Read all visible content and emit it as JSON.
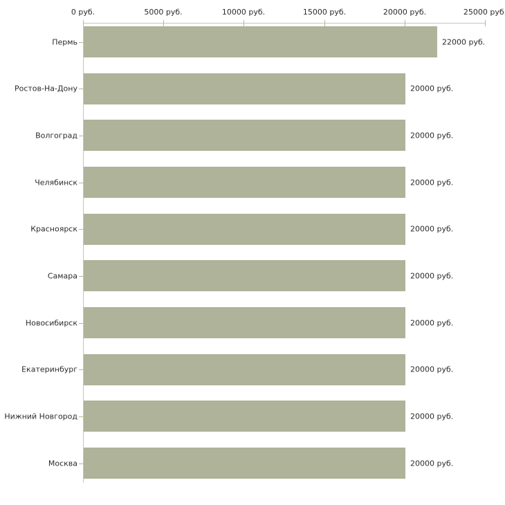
{
  "chart_data": {
    "type": "bar",
    "orientation": "horizontal",
    "title": "",
    "xlabel": "",
    "ylabel": "",
    "unit": "руб.",
    "xlim": [
      0,
      25000
    ],
    "grid": false,
    "legend": "none",
    "categories": [
      "Пермь",
      "Ростов-На-Дону",
      "Волгоград",
      "Челябинск",
      "Красноярск",
      "Самара",
      "Новосибирск",
      "Екатеринбург",
      "Нижний Новгород",
      "Москва"
    ],
    "values": [
      22000,
      20000,
      20000,
      20000,
      20000,
      20000,
      20000,
      20000,
      20000,
      20000
    ],
    "value_labels": [
      "22000 руб.",
      "20000 руб.",
      "20000 руб.",
      "20000 руб.",
      "20000 руб.",
      "20000 руб.",
      "20000 руб.",
      "20000 руб.",
      "20000 руб.",
      "20000 руб."
    ],
    "x_ticks": [
      0,
      5000,
      10000,
      15000,
      20000,
      25000
    ],
    "x_tick_labels": [
      "0 руб.",
      "5000 руб.",
      "10000 руб.",
      "15000 руб.",
      "20000 руб.",
      "25000 руб."
    ],
    "colors": {
      "bar": "#aeb399",
      "axis": "#c3c3c3",
      "tick": "#b7b78a",
      "text": "#2b2b2b",
      "background": "#ffffff"
    }
  }
}
